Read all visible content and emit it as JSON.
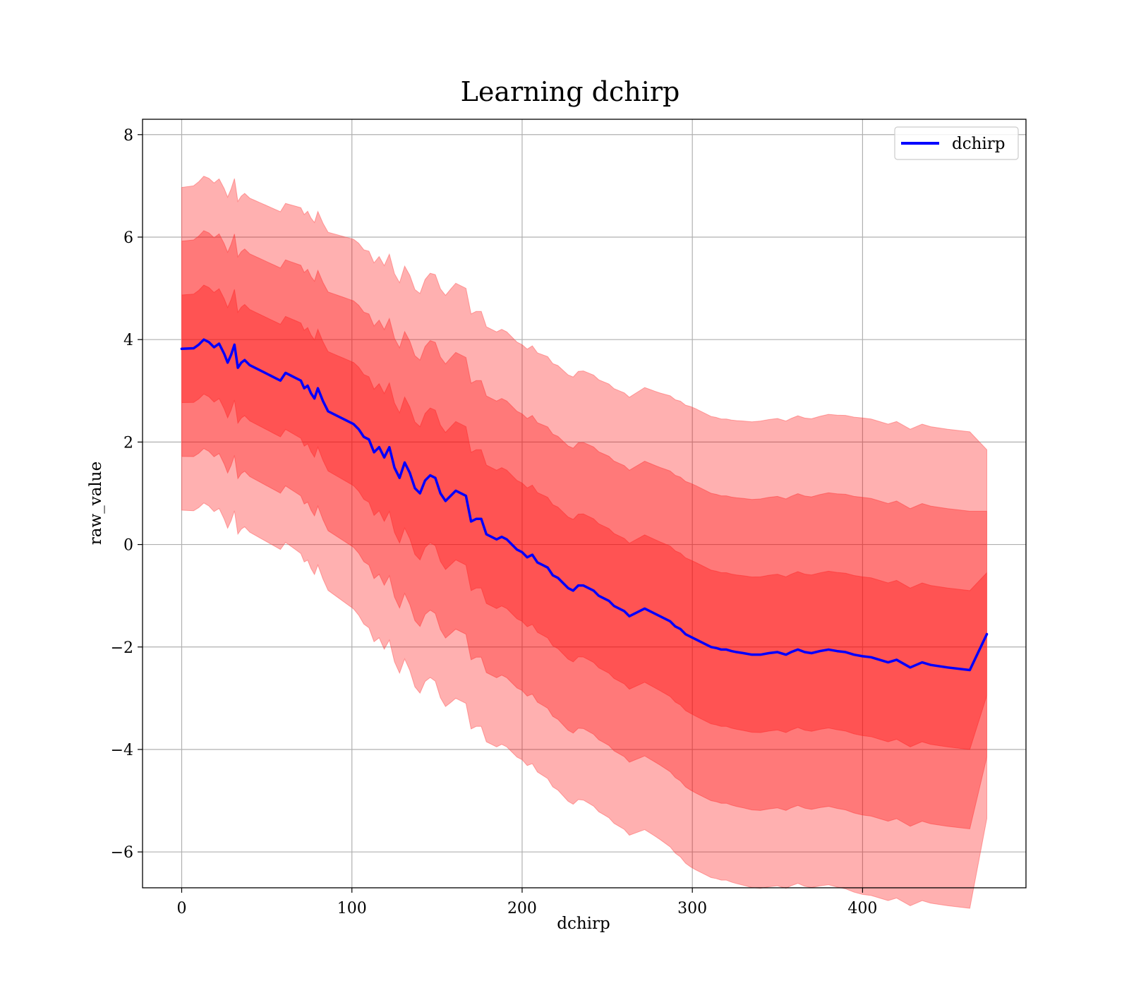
{
  "chart_data": {
    "type": "line",
    "title": "Learning dchirp",
    "xlabel": "dchirp",
    "ylabel": "raw_value",
    "xlim": [
      -23,
      496
    ],
    "ylim": [
      -6.7,
      8.3
    ],
    "xticks": [
      0,
      100,
      200,
      300,
      400
    ],
    "yticks": [
      -6,
      -4,
      -2,
      0,
      2,
      4,
      6,
      8
    ],
    "xtick_labels": [
      "0",
      "100",
      "200",
      "300",
      "400"
    ],
    "ytick_labels": [
      "−6",
      "−4",
      "−2",
      "0",
      "2",
      "4",
      "6",
      "8"
    ],
    "grid": true,
    "legend": {
      "placement": "top-right",
      "entries": [
        "dchirp"
      ]
    },
    "colors": {
      "line": "#0000ff",
      "band": "#ff0000",
      "band_edge": "#ff5555"
    },
    "band_opacity": 0.31,
    "band_sigmas": [
      1,
      2,
      3
    ],
    "series": [
      {
        "name": "dchirp",
        "role": "mean",
        "x": [
          0,
          7,
          10,
          13,
          16,
          19,
          22,
          25,
          27,
          29,
          31,
          33,
          35,
          37,
          40,
          43,
          46,
          49,
          52,
          55,
          58,
          61,
          64,
          67,
          70,
          72,
          74,
          76,
          78,
          80,
          83,
          86,
          89,
          92,
          95,
          98,
          101,
          104,
          107,
          110,
          113,
          116,
          119,
          122,
          125,
          128,
          131,
          134,
          137,
          140,
          143,
          146,
          149,
          152,
          155,
          158,
          161,
          164,
          167,
          170,
          173,
          176,
          179,
          182,
          185,
          188,
          191,
          194,
          197,
          200,
          203,
          206,
          209,
          212,
          215,
          218,
          221,
          224,
          227,
          230,
          233,
          236,
          239,
          242,
          245,
          248,
          251,
          254,
          257,
          260,
          263,
          266,
          269,
          272,
          275,
          278,
          281,
          284,
          287,
          290,
          293,
          296,
          299,
          302,
          305,
          308,
          311,
          314,
          317,
          320,
          323,
          326,
          330,
          335,
          340,
          345,
          350,
          355,
          358,
          362,
          366,
          370,
          375,
          380,
          385,
          390,
          395,
          400,
          405,
          410,
          415,
          420,
          428,
          435,
          440,
          450,
          463,
          473
        ],
        "y": [
          3.82,
          3.83,
          3.9,
          4.0,
          3.95,
          3.85,
          3.92,
          3.72,
          3.55,
          3.7,
          3.9,
          3.45,
          3.55,
          3.6,
          3.5,
          3.45,
          3.4,
          3.35,
          3.3,
          3.25,
          3.2,
          3.35,
          3.3,
          3.25,
          3.2,
          3.05,
          3.1,
          2.95,
          2.85,
          3.05,
          2.8,
          2.6,
          2.55,
          2.5,
          2.45,
          2.4,
          2.35,
          2.25,
          2.1,
          2.05,
          1.8,
          1.9,
          1.7,
          1.9,
          1.5,
          1.3,
          1.6,
          1.4,
          1.1,
          1.0,
          1.25,
          1.35,
          1.3,
          1.0,
          0.85,
          0.95,
          1.05,
          1.0,
          0.95,
          0.45,
          0.5,
          0.5,
          0.2,
          0.15,
          0.1,
          0.15,
          0.1,
          0.0,
          -0.1,
          -0.15,
          -0.25,
          -0.2,
          -0.35,
          -0.4,
          -0.45,
          -0.6,
          -0.65,
          -0.75,
          -0.85,
          -0.9,
          -0.8,
          -0.8,
          -0.85,
          -0.9,
          -1.0,
          -1.05,
          -1.1,
          -1.2,
          -1.25,
          -1.3,
          -1.4,
          -1.35,
          -1.3,
          -1.25,
          -1.3,
          -1.35,
          -1.4,
          -1.45,
          -1.5,
          -1.6,
          -1.65,
          -1.75,
          -1.8,
          -1.85,
          -1.9,
          -1.95,
          -2.0,
          -2.02,
          -2.05,
          -2.05,
          -2.08,
          -2.1,
          -2.12,
          -2.15,
          -2.15,
          -2.12,
          -2.1,
          -2.15,
          -2.1,
          -2.05,
          -2.1,
          -2.12,
          -2.08,
          -2.05,
          -2.08,
          -2.1,
          -2.15,
          -2.18,
          -2.2,
          -2.25,
          -2.3,
          -2.25,
          -2.4,
          -2.3,
          -2.35,
          -2.4,
          -2.45,
          -1.75
        ]
      },
      {
        "name": "",
        "role": "standard-deviation",
        "x": [
          0,
          30,
          60,
          80,
          100,
          120,
          140,
          160,
          175,
          190,
          200,
          220,
          240,
          260,
          280,
          300,
          320,
          340,
          360,
          380,
          400,
          420,
          440,
          463,
          473
        ],
        "y": [
          1.05,
          1.08,
          1.1,
          1.15,
          1.2,
          1.25,
          1.3,
          1.35,
          1.35,
          1.35,
          1.35,
          1.38,
          1.4,
          1.42,
          1.45,
          1.5,
          1.5,
          1.52,
          1.52,
          1.53,
          1.55,
          1.55,
          1.55,
          1.55,
          1.2
        ]
      }
    ]
  }
}
